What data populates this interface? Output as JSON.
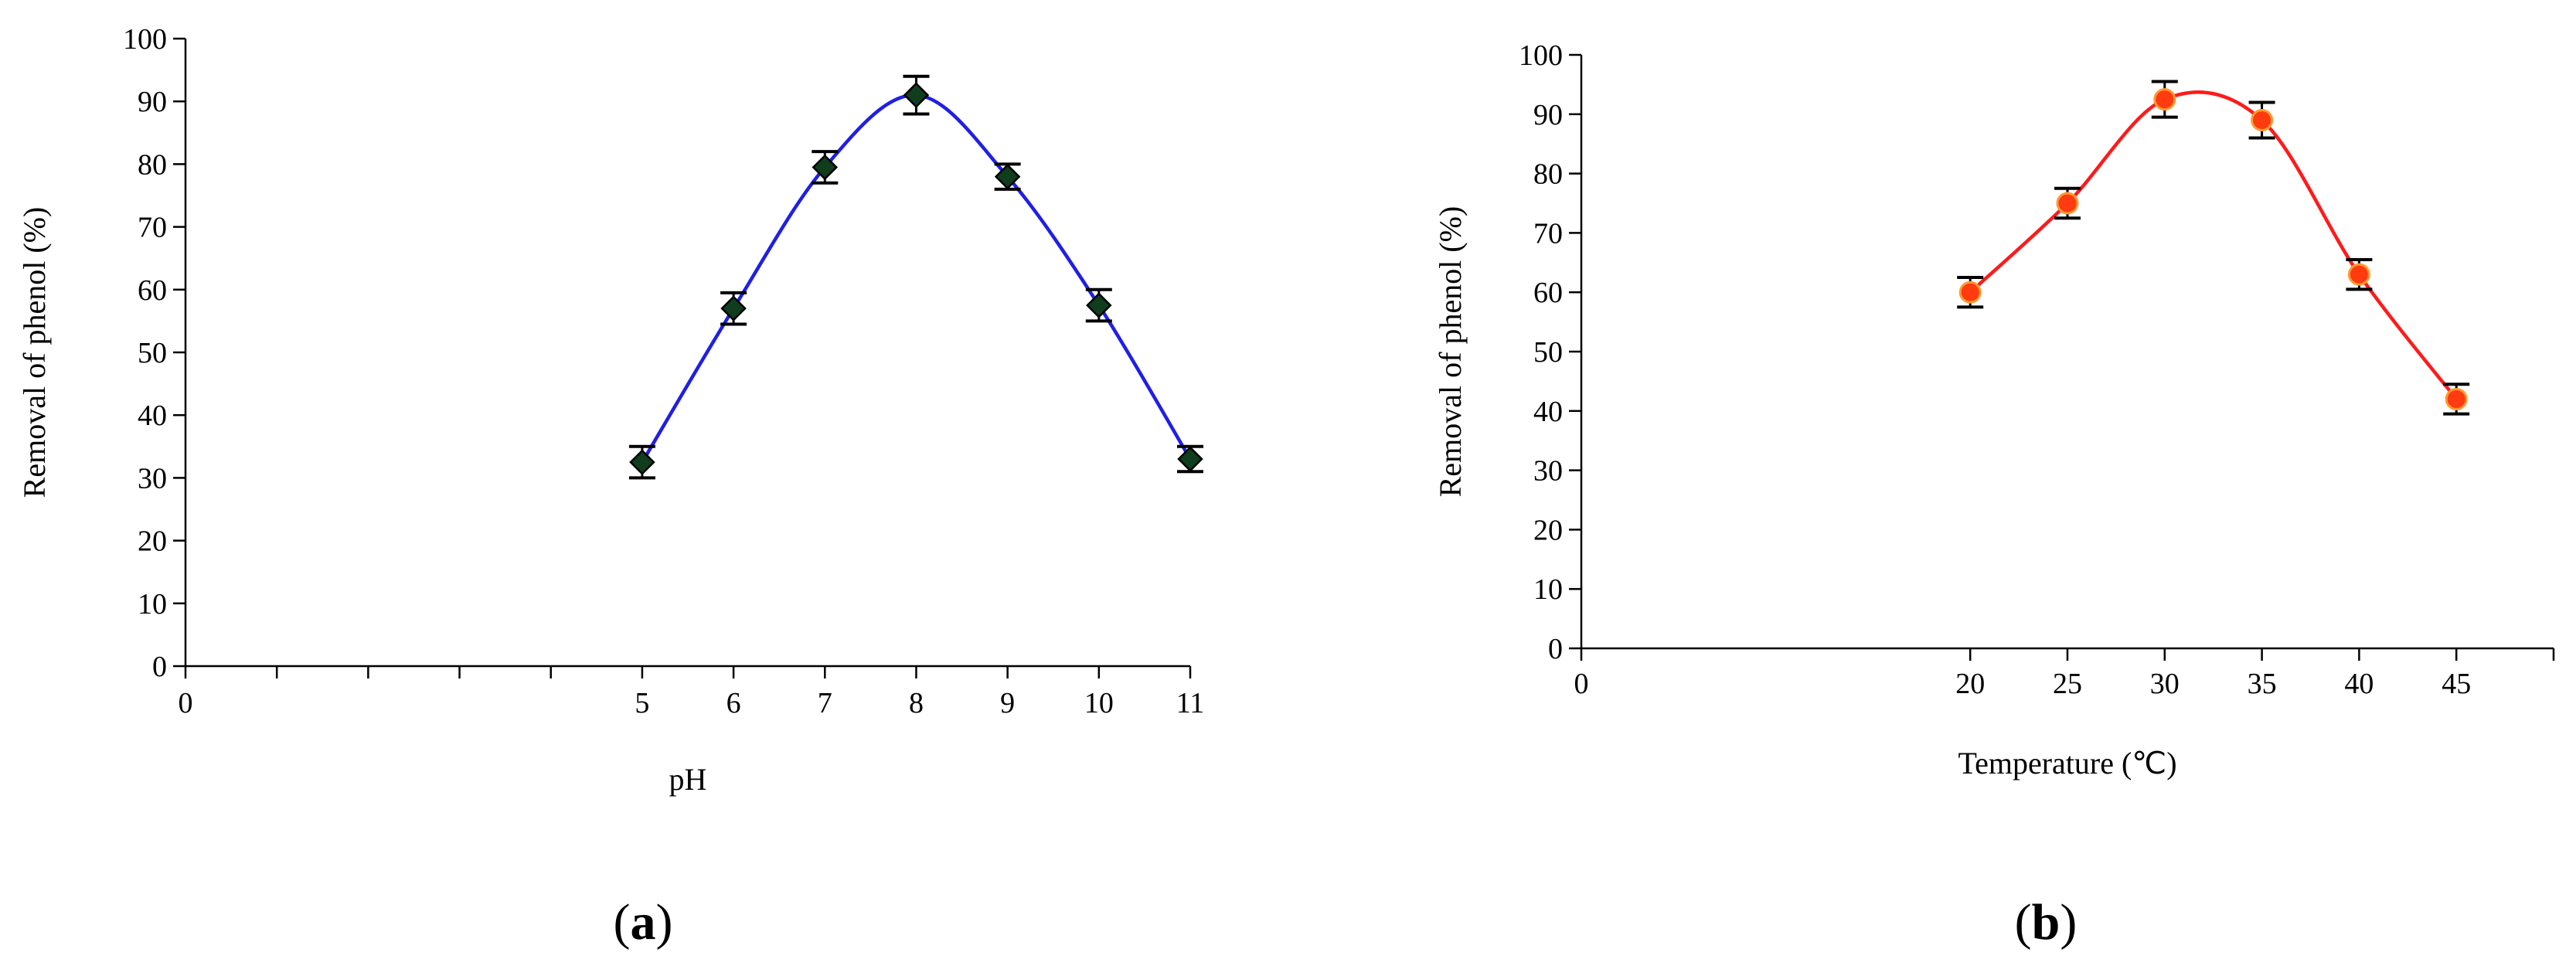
{
  "chart_data": [
    {
      "panel_label": "a",
      "type": "line",
      "xlabel": "pH",
      "ylabel": "Removal of phenol (%)",
      "xlim": [
        0,
        11
      ],
      "ylim": [
        0,
        100
      ],
      "xticks": [
        0,
        5,
        6,
        7,
        8,
        9,
        10,
        11
      ],
      "yticks": [
        0,
        10,
        20,
        30,
        40,
        50,
        60,
        70,
        80,
        90,
        100
      ],
      "grid": false,
      "series": [
        {
          "x": [
            5,
            6,
            7,
            8,
            9,
            10,
            11
          ],
          "y": [
            32.5,
            57,
            79.5,
            91,
            78,
            57.5,
            33
          ],
          "error": [
            2.5,
            2.5,
            2.5,
            3,
            2,
            2.5,
            2
          ],
          "line_color": "#1f1fe6",
          "marker": "diamond",
          "marker_color": "#0f3d1e"
        }
      ]
    },
    {
      "panel_label": "b",
      "type": "line",
      "xlabel": "Temperature (℃)",
      "ylabel": "Removal of phenol (%)",
      "xlim": [
        0,
        50
      ],
      "ylim": [
        0,
        100
      ],
      "xticks": [
        0,
        20,
        25,
        30,
        35,
        40,
        45
      ],
      "yticks": [
        0,
        10,
        20,
        30,
        40,
        50,
        60,
        70,
        80,
        90,
        100
      ],
      "grid": false,
      "series": [
        {
          "x": [
            20,
            25,
            30,
            35,
            40,
            45
          ],
          "y": [
            60,
            75,
            92.5,
            89,
            63,
            42
          ],
          "error": [
            2.5,
            2.5,
            3,
            3,
            2.5,
            2.5
          ],
          "line_color": "#ff1a1a",
          "marker": "circle",
          "marker_color": "#ff3b0f"
        }
      ]
    }
  ]
}
